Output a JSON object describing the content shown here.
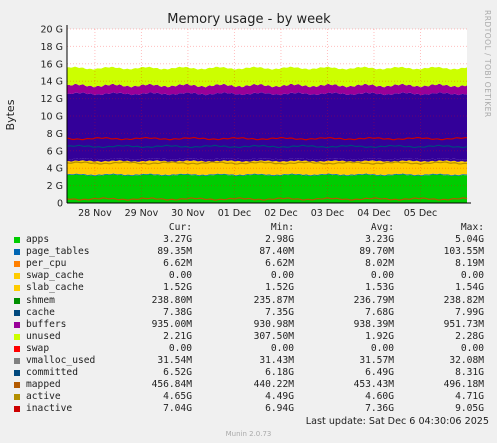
{
  "chart_data": {
    "type": "area",
    "title": "Memory usage - by week",
    "ylabel": "Bytes",
    "side_text": "RRDTOOL / TOBI OETIKER",
    "ylim": [
      0,
      20
    ],
    "yticks": [
      "0",
      "2 G",
      "4 G",
      "6 G",
      "8 G",
      "10 G",
      "12 G",
      "14 G",
      "16 G",
      "18 G",
      "20 G"
    ],
    "xticks": [
      "28 Nov",
      "29 Nov",
      "30 Nov",
      "01 Dec",
      "02 Dec",
      "03 Dec",
      "04 Dec",
      "05 Dec"
    ],
    "grid": true,
    "stack_gb": [
      {
        "name": "apps",
        "color": "#00cc00",
        "value": 3.2
      },
      {
        "name": "page_tables",
        "color": "#0066b3",
        "value": 0.09
      },
      {
        "name": "per_cpu",
        "color": "#ff8000",
        "value": 0.01
      },
      {
        "name": "swap_cache",
        "color": "#ffcc00",
        "value": 0.0
      },
      {
        "name": "slab_cache",
        "color": "#ffcc00",
        "value": 1.52
      },
      {
        "name": "shmem",
        "color": "#330099",
        "value": 0.24
      },
      {
        "name": "cache",
        "color": "#330099",
        "value": 7.5
      },
      {
        "name": "buffers",
        "color": "#990099",
        "value": 0.94
      },
      {
        "name": "unused",
        "color": "#ccff00",
        "value": 2.0
      }
    ],
    "lines_gb": [
      {
        "name": "committed",
        "color": "#00487d",
        "value": 6.5
      },
      {
        "name": "inactive",
        "color": "#cc0000",
        "value": 7.4
      },
      {
        "name": "active",
        "color": "#b38f00",
        "value": 4.6
      },
      {
        "name": "mapped",
        "color": "#b35a00",
        "value": 0.46
      }
    ]
  },
  "legend": {
    "headers": {
      "cur": "Cur:",
      "min": "Min:",
      "avg": "Avg:",
      "max": "Max:"
    },
    "rows": [
      {
        "name": "apps",
        "color": "#00cc00",
        "cur": "3.27G",
        "min": "2.98G",
        "avg": "3.23G",
        "max": "5.04G"
      },
      {
        "name": "page_tables",
        "color": "#0066b3",
        "cur": "89.35M",
        "min": "87.40M",
        "avg": "89.70M",
        "max": "103.55M"
      },
      {
        "name": "per_cpu",
        "color": "#ff8000",
        "cur": "6.62M",
        "min": "6.62M",
        "avg": "8.02M",
        "max": "8.19M"
      },
      {
        "name": "swap_cache",
        "color": "#ffcc00",
        "cur": "0.00",
        "min": "0.00",
        "avg": "0.00",
        "max": "0.00"
      },
      {
        "name": "slab_cache",
        "color": "#ffcc00",
        "cur": "1.52G",
        "min": "1.52G",
        "avg": "1.53G",
        "max": "1.54G"
      },
      {
        "name": "shmem",
        "color": "#008f00",
        "cur": "238.80M",
        "min": "235.87M",
        "avg": "236.79M",
        "max": "238.82M"
      },
      {
        "name": "cache",
        "color": "#00487d",
        "cur": "7.38G",
        "min": "7.35G",
        "avg": "7.68G",
        "max": "7.99G"
      },
      {
        "name": "buffers",
        "color": "#990099",
        "cur": "935.00M",
        "min": "930.98M",
        "avg": "938.39M",
        "max": "951.73M"
      },
      {
        "name": "unused",
        "color": "#ccff00",
        "cur": "2.21G",
        "min": "307.50M",
        "avg": "1.92G",
        "max": "2.28G"
      },
      {
        "name": "swap",
        "color": "#ff0000",
        "cur": "0.00",
        "min": "0.00",
        "avg": "0.00",
        "max": "0.00"
      },
      {
        "name": "vmalloc_used",
        "color": "#808080",
        "cur": "31.54M",
        "min": "31.43M",
        "avg": "31.57M",
        "max": "32.08M"
      },
      {
        "name": "committed",
        "color": "#00487d",
        "cur": "6.52G",
        "min": "6.18G",
        "avg": "6.49G",
        "max": "8.31G"
      },
      {
        "name": "mapped",
        "color": "#b35a00",
        "cur": "456.84M",
        "min": "440.22M",
        "avg": "453.43M",
        "max": "496.18M"
      },
      {
        "name": "active",
        "color": "#b38f00",
        "cur": "4.65G",
        "min": "4.49G",
        "avg": "4.60G",
        "max": "4.71G"
      },
      {
        "name": "inactive",
        "color": "#cc0000",
        "cur": "7.04G",
        "min": "6.94G",
        "avg": "7.36G",
        "max": "9.05G"
      }
    ]
  },
  "last_update": "Last update:  Sat Dec  6 04:30:06 2025",
  "footer": "Munin 2.0.73"
}
